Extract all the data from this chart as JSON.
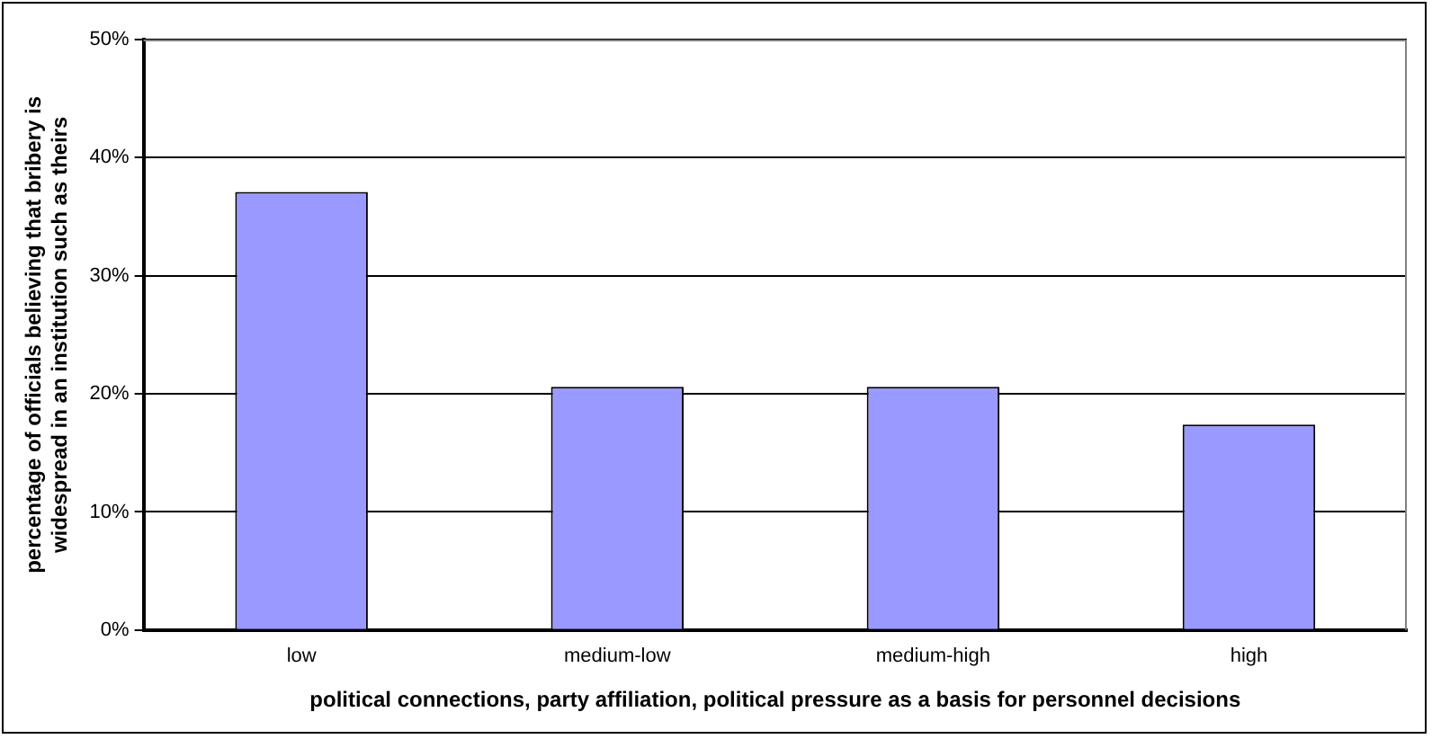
{
  "chart_data": {
    "type": "bar",
    "xlabel": "political connections, party affiliation, political pressure as a basis for personnel decisions",
    "ylabel": "percentage of officials believing that bribery is widespread in an institution such as theirs",
    "categories": [
      "low",
      "medium-low",
      "medium-high",
      "high"
    ],
    "values": [
      37.1,
      20.6,
      20.6,
      17.4
    ],
    "color": "#9999ff",
    "ylim": [
      0,
      50
    ],
    "yticks": [
      {
        "value": 0,
        "label": "0%"
      },
      {
        "value": 10,
        "label": "10%"
      },
      {
        "value": 20,
        "label": "20%"
      },
      {
        "value": 30,
        "label": "30%"
      },
      {
        "value": 40,
        "label": "40%"
      },
      {
        "value": 50,
        "label": "50%"
      }
    ],
    "grid": "y",
    "legend": false
  }
}
